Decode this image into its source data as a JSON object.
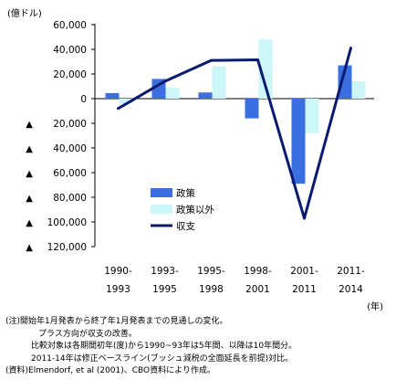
{
  "chart_data": {
    "type": "bar",
    "unit_label": "(億ドル)",
    "x_unit_label": "(年)",
    "categories": [
      [
        "1990-",
        "1993"
      ],
      [
        "1993-",
        "1995"
      ],
      [
        "1995-",
        "1998"
      ],
      [
        "1998-",
        "2001"
      ],
      [
        "2001-",
        "2011"
      ],
      [
        "2011-",
        "2014"
      ]
    ],
    "y_ticks": [
      {
        "value": 60000,
        "label": "60,000",
        "marker": false
      },
      {
        "value": 40000,
        "label": "40,000",
        "marker": false
      },
      {
        "value": 20000,
        "label": "20,000",
        "marker": false
      },
      {
        "value": 0,
        "label": "0",
        "marker": false
      },
      {
        "value": -20000,
        "label": "20,000",
        "marker": true
      },
      {
        "value": -40000,
        "label": "40,000",
        "marker": true
      },
      {
        "value": -60000,
        "label": "60,000",
        "marker": true
      },
      {
        "value": -80000,
        "label": "80,000",
        "marker": true
      },
      {
        "value": -100000,
        "label": "100,000",
        "marker": true
      },
      {
        "value": -120000,
        "label": "120,000",
        "marker": true
      }
    ],
    "negative_marker": "▲",
    "ylim": [
      -120000,
      60000
    ],
    "series": [
      {
        "name": "政策",
        "type": "bar",
        "color": "#3b6fe0",
        "values": [
          4500,
          16000,
          5000,
          -16000,
          -69000,
          27000
        ]
      },
      {
        "name": "政策以外",
        "type": "bar",
        "color": "#ccf6f8",
        "values": [
          -4000,
          9000,
          26000,
          48000,
          -28000,
          14000
        ]
      },
      {
        "name": "収支",
        "type": "line",
        "color": "#0a1a6e",
        "values": [
          -8000,
          14000,
          31000,
          31500,
          -97000,
          41000
        ]
      }
    ],
    "legend_position": "center-left, below zero line",
    "grid": false
  },
  "notes": {
    "line1": "(注)開始年1月発表から終了年1月発表までの見通しの変化。",
    "line2": "プラス方向が収支の改善。",
    "line3": "比較対象は各期間初年(度)から1990~93年は5年間、以降は10年間分。",
    "line4": "2011-14年は修正ベースライン(ブッシュ減税の全面延長を前提)対比。",
    "line5": "(資料)Elmendorf, et al (2001)、CBO資料により作成。"
  }
}
